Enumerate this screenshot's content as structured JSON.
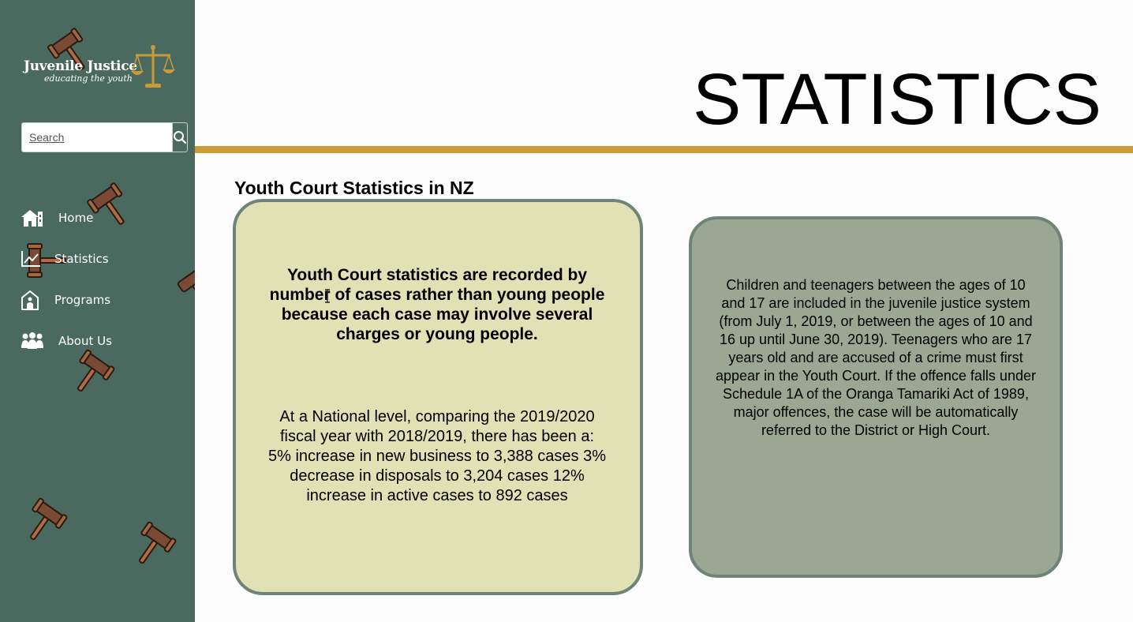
{
  "sidebar": {
    "logo": {
      "title": "Juvenile Justice",
      "subtitle": "educating the youth"
    },
    "search": {
      "placeholder": "Search"
    },
    "nav": [
      {
        "label": "Home",
        "icon": "home-icon"
      },
      {
        "label": "Statistics",
        "icon": "chart-icon"
      },
      {
        "label": "Programs",
        "icon": "programs-icon"
      },
      {
        "label": "About Us",
        "icon": "people-icon"
      }
    ]
  },
  "header": {
    "title": "STATISTICS"
  },
  "main": {
    "heading": "Youth Court Statistics in NZ",
    "card_left": {
      "intro": "Youth Court statistics are recorded by number of cases rather than young people because each case may involve several charges or young people.",
      "body": "At a National level, comparing the 2019/2020 fiscal year with 2018/2019, there has been a: 5% increase in new business to 3,388 cases 3% decrease in disposals to 3,204 cases 12% increase in active cases to 892 cases"
    },
    "card_right": {
      "body": "Children and teenagers between the ages of 10 and 17 are included in the juvenile justice system (from July 1, 2019, or between the ages of 10 and 16 up until June 30, 2019). Teenagers who are 17 years old and are accused of a crime must first appear in the Youth Court. If the offence falls under Schedule 1A of the Oranga Tamariki Act of 1989, major offences, the case will be automatically referred to the District or High Court."
    }
  },
  "colors": {
    "sidebar": "#4a6a5f",
    "accent_bar": "#cf9b38",
    "card_left_bg": "#e0e1b5",
    "card_right_bg": "#9aa792",
    "card_border": "#6e8478"
  }
}
